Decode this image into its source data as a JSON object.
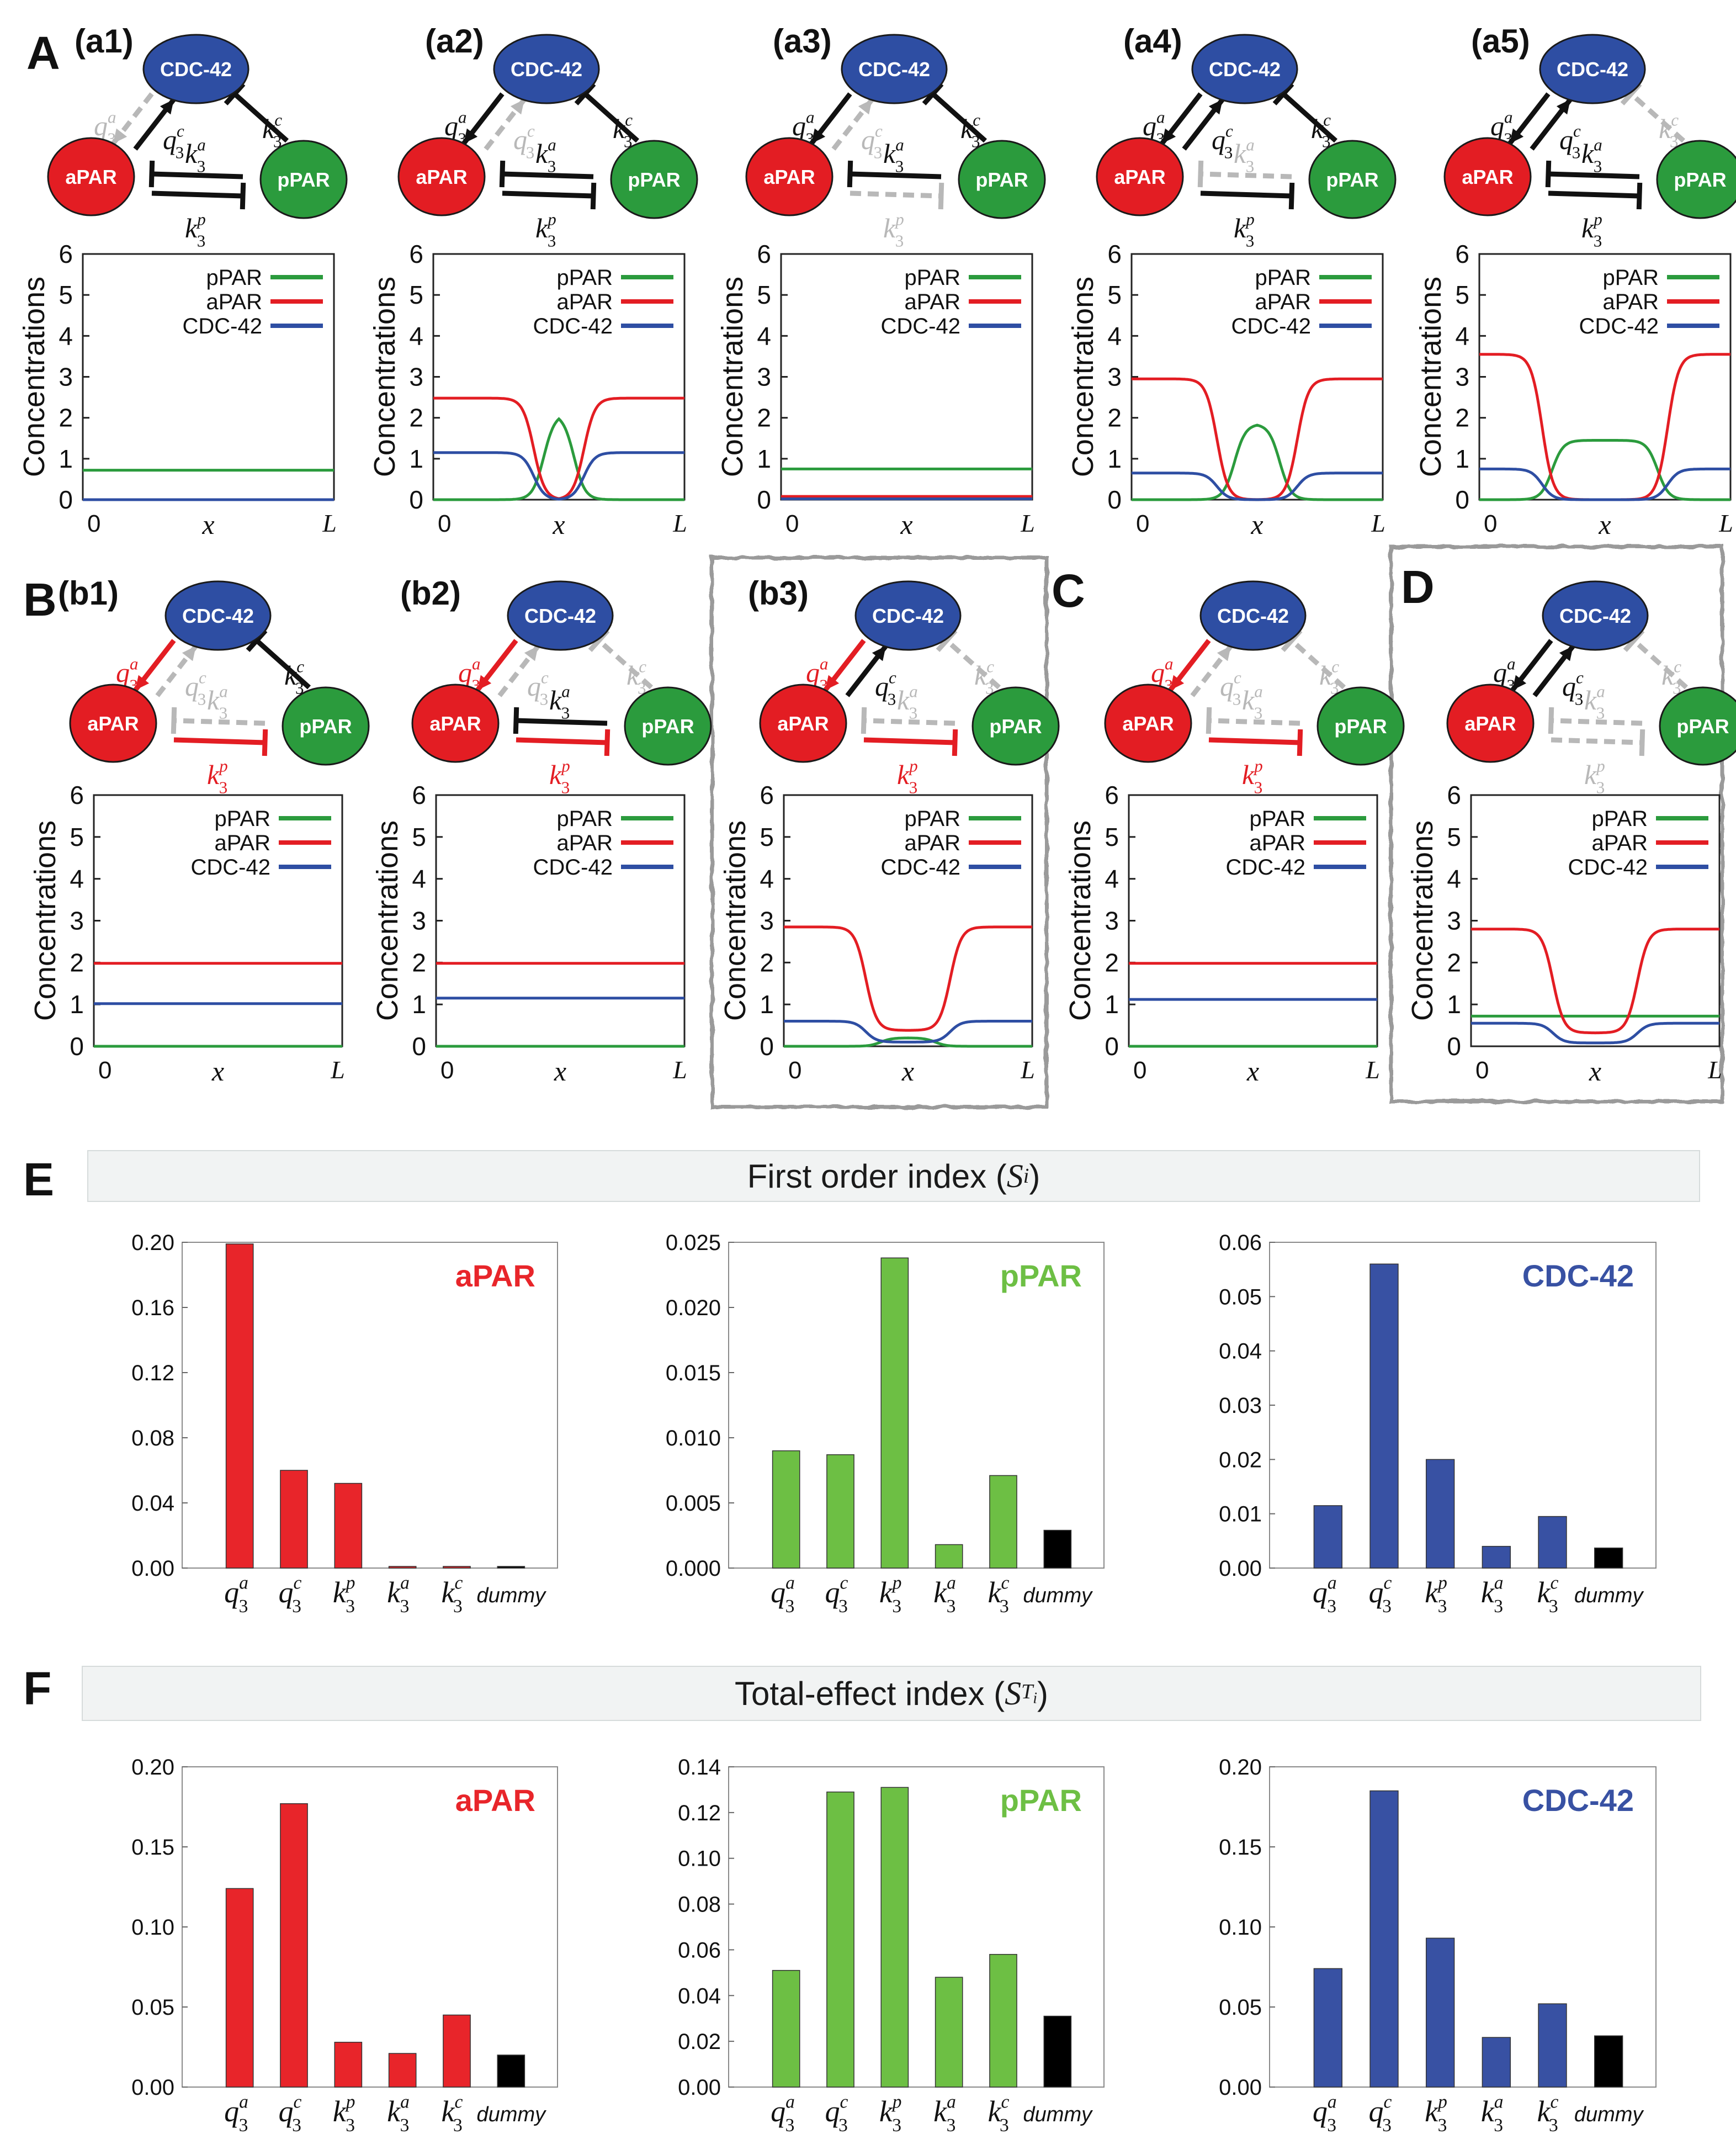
{
  "figure": {
    "panel_letters": [
      "A",
      "B",
      "C",
      "D",
      "E",
      "F"
    ],
    "species": {
      "cdc": "CDC-42",
      "apar": "aPAR",
      "ppar": "pPAR"
    },
    "edge_labels": {
      "q3a": "q",
      "q3c": "q",
      "k3a": "k",
      "k3c": "k",
      "k3p": "k",
      "sub": "3",
      "sup_a": "a",
      "sup_c": "c",
      "sup_p": "p"
    },
    "axis_labels": {
      "x": "x",
      "y": "Concentrations",
      "start": "0",
      "end": "L"
    },
    "colors": {
      "apar": "#e31d23",
      "ppar": "#2b9b3d",
      "cdc": "#2e4ea3",
      "active": "#111111",
      "inactive": "#b8b8b8",
      "green_bar": "#6dbf44",
      "red_bar": "#e8252a",
      "blue_bar": "#3851a3",
      "dummy_bar": "#000000"
    },
    "section_headers": {
      "first_order_prefix": "First order index (",
      "first_order_symbol": "S",
      "first_order_sub": "i",
      "total_prefix": "Total-effect index (",
      "total_symbol": "S",
      "total_sub": "T",
      "total_subsub": "i",
      "closing": ")"
    }
  },
  "chart_data": [
    {
      "id": "a1",
      "type": "line",
      "label": "(a1)",
      "xlabel": "x",
      "ylabel": "Concentrations",
      "ylim": [
        0,
        6
      ],
      "yticks": [
        0,
        1,
        2,
        3,
        4,
        5,
        6
      ],
      "legend": [
        "pPAR",
        "aPAR",
        "CDC-42"
      ],
      "network": {
        "q3a": "inactive",
        "q3c": "active",
        "k3a": "active",
        "k3p": "active",
        "k3c": "active"
      },
      "series": [
        {
          "name": "pPAR",
          "profile": "flat",
          "value": 0.72
        },
        {
          "name": "aPAR",
          "profile": "flat",
          "value": 0.0
        },
        {
          "name": "CDC-42",
          "profile": "flat",
          "value": 0.0
        }
      ]
    },
    {
      "id": "a2",
      "type": "line",
      "label": "(a2)",
      "xlabel": "x",
      "ylabel": "Concentrations",
      "ylim": [
        0,
        6
      ],
      "yticks": [
        0,
        1,
        2,
        3,
        4,
        5,
        6
      ],
      "legend": [
        "pPAR",
        "aPAR",
        "CDC-42"
      ],
      "network": {
        "q3a": "active",
        "q3c": "inactive",
        "k3a": "active",
        "k3p": "active",
        "k3c": "active"
      },
      "series": [
        {
          "name": "pPAR",
          "profile": "bump",
          "base": 0.0,
          "peak": 2.1,
          "center": 0.5,
          "width": 0.12
        },
        {
          "name": "aPAR",
          "profile": "dip",
          "base": 2.48,
          "low": 0.0,
          "center": 0.5,
          "width": 0.2
        },
        {
          "name": "CDC-42",
          "profile": "dip",
          "base": 1.15,
          "low": 0.0,
          "center": 0.5,
          "width": 0.2
        }
      ]
    },
    {
      "id": "a3",
      "type": "line",
      "label": "(a3)",
      "xlabel": "x",
      "ylabel": "Concentrations",
      "ylim": [
        0,
        6
      ],
      "yticks": [
        0,
        1,
        2,
        3,
        4,
        5,
        6
      ],
      "legend": [
        "pPAR",
        "aPAR",
        "CDC-42"
      ],
      "network": {
        "q3a": "active",
        "q3c": "inactive",
        "k3a": "active",
        "k3p": "inactive",
        "k3c": "active"
      },
      "series": [
        {
          "name": "pPAR",
          "profile": "flat",
          "value": 0.75
        },
        {
          "name": "aPAR",
          "profile": "flat",
          "value": 0.08
        },
        {
          "name": "CDC-42",
          "profile": "flat",
          "value": 0.02
        }
      ]
    },
    {
      "id": "a4",
      "type": "line",
      "label": "(a4)",
      "xlabel": "x",
      "ylabel": "Concentrations",
      "ylim": [
        0,
        6
      ],
      "yticks": [
        0,
        1,
        2,
        3,
        4,
        5,
        6
      ],
      "legend": [
        "pPAR",
        "aPAR",
        "CDC-42"
      ],
      "network": {
        "q3a": "active",
        "q3c": "active",
        "k3a": "inactive",
        "k3p": "active",
        "k3c": "active"
      },
      "series": [
        {
          "name": "pPAR",
          "profile": "bump",
          "base": 0.0,
          "peak": 1.85,
          "center": 0.5,
          "width": 0.18
        },
        {
          "name": "aPAR",
          "profile": "dip",
          "base": 2.95,
          "low": 0.0,
          "center": 0.5,
          "width": 0.32
        },
        {
          "name": "CDC-42",
          "profile": "dip",
          "base": 0.65,
          "low": 0.0,
          "center": 0.5,
          "width": 0.32
        }
      ]
    },
    {
      "id": "a5",
      "type": "line",
      "label": "(a5)",
      "xlabel": "x",
      "ylabel": "Concentrations",
      "ylim": [
        0,
        6
      ],
      "yticks": [
        0,
        1,
        2,
        3,
        4,
        5,
        6
      ],
      "legend": [
        "pPAR",
        "aPAR",
        "CDC-42"
      ],
      "network": {
        "q3a": "active",
        "q3c": "active",
        "k3a": "active",
        "k3p": "active",
        "k3c": "inactive"
      },
      "series": [
        {
          "name": "pPAR",
          "profile": "bump",
          "base": 0.0,
          "peak": 1.45,
          "center": 0.5,
          "width": 0.42
        },
        {
          "name": "aPAR",
          "profile": "dip",
          "base": 3.55,
          "low": 0.0,
          "center": 0.5,
          "width": 0.5
        },
        {
          "name": "CDC-42",
          "profile": "dip",
          "base": 0.75,
          "low": 0.0,
          "center": 0.5,
          "width": 0.5
        }
      ]
    },
    {
      "id": "b1",
      "type": "line",
      "label": "(b1)",
      "xlabel": "x",
      "ylabel": "Concentrations",
      "ylim": [
        0,
        6
      ],
      "yticks": [
        0,
        1,
        2,
        3,
        4,
        5,
        6
      ],
      "legend": [
        "pPAR",
        "aPAR",
        "CDC-42"
      ],
      "network": {
        "q3a": "red",
        "q3c": "inactive",
        "k3a": "inactive",
        "k3p": "red",
        "k3c": "active"
      },
      "series": [
        {
          "name": "pPAR",
          "profile": "flat",
          "value": 0.0
        },
        {
          "name": "aPAR",
          "profile": "flat",
          "value": 1.98
        },
        {
          "name": "CDC-42",
          "profile": "flat",
          "value": 1.02
        }
      ]
    },
    {
      "id": "b2",
      "type": "line",
      "label": "(b2)",
      "xlabel": "x",
      "ylabel": "Concentrations",
      "ylim": [
        0,
        6
      ],
      "yticks": [
        0,
        1,
        2,
        3,
        4,
        5,
        6
      ],
      "legend": [
        "pPAR",
        "aPAR",
        "CDC-42"
      ],
      "network": {
        "q3a": "red",
        "q3c": "inactive",
        "k3a": "active",
        "k3p": "red",
        "k3c": "inactive"
      },
      "series": [
        {
          "name": "pPAR",
          "profile": "flat",
          "value": 0.0
        },
        {
          "name": "aPAR",
          "profile": "flat",
          "value": 1.98
        },
        {
          "name": "CDC-42",
          "profile": "flat",
          "value": 1.15
        }
      ]
    },
    {
      "id": "b3",
      "type": "line",
      "label": "(b3)",
      "xlabel": "x",
      "ylabel": "Concentrations",
      "ylim": [
        0,
        6
      ],
      "yticks": [
        0,
        1,
        2,
        3,
        4,
        5,
        6
      ],
      "legend": [
        "pPAR",
        "aPAR",
        "CDC-42"
      ],
      "network": {
        "q3a": "red",
        "q3c": "active",
        "k3a": "inactive",
        "k3p": "red",
        "k3c": "inactive"
      },
      "series": [
        {
          "name": "pPAR",
          "profile": "bump",
          "base": 0.0,
          "peak": 0.2,
          "center": 0.5,
          "width": 0.22
        },
        {
          "name": "aPAR",
          "profile": "dip",
          "base": 2.85,
          "low": 0.38,
          "center": 0.5,
          "width": 0.34
        },
        {
          "name": "CDC-42",
          "profile": "dip",
          "base": 0.6,
          "low": 0.1,
          "center": 0.5,
          "width": 0.34
        }
      ]
    },
    {
      "id": "c",
      "type": "line",
      "label": "",
      "xlabel": "x",
      "ylabel": "Concentrations",
      "ylim": [
        0,
        6
      ],
      "yticks": [
        0,
        1,
        2,
        3,
        4,
        5,
        6
      ],
      "legend": [
        "pPAR",
        "aPAR",
        "CDC-42"
      ],
      "network": {
        "q3a": "red",
        "q3c": "inactive",
        "k3a": "inactive",
        "k3p": "red",
        "k3c": "inactive"
      },
      "series": [
        {
          "name": "pPAR",
          "profile": "flat",
          "value": 0.0
        },
        {
          "name": "aPAR",
          "profile": "flat",
          "value": 1.98
        },
        {
          "name": "CDC-42",
          "profile": "flat",
          "value": 1.12
        }
      ]
    },
    {
      "id": "d",
      "type": "line",
      "label": "",
      "xlabel": "x",
      "ylabel": "Concentrations",
      "ylim": [
        0,
        6
      ],
      "yticks": [
        0,
        1,
        2,
        3,
        4,
        5,
        6
      ],
      "legend": [
        "pPAR",
        "aPAR",
        "CDC-42"
      ],
      "network": {
        "q3a": "active",
        "q3c": "active",
        "k3a": "inactive",
        "k3p": "inactive",
        "k3c": "inactive"
      },
      "series": [
        {
          "name": "pPAR",
          "profile": "flat",
          "value": 0.72
        },
        {
          "name": "aPAR",
          "profile": "dip",
          "base": 2.8,
          "low": 0.32,
          "center": 0.5,
          "width": 0.34
        },
        {
          "name": "CDC-42",
          "profile": "dip",
          "base": 0.55,
          "low": 0.08,
          "center": 0.5,
          "width": 0.34
        }
      ]
    },
    {
      "id": "e_apar",
      "type": "bar",
      "title": "aPAR",
      "categories": [
        "q3a",
        "q3c",
        "k3p",
        "k3a",
        "k3c",
        "dummy"
      ],
      "values": [
        0.199,
        0.06,
        0.052,
        0.001,
        0.001,
        0.001
      ],
      "ylim": [
        0,
        0.2
      ],
      "yticks": [
        "0.00",
        "0.04",
        "0.08",
        "0.12",
        "0.16",
        "0.20"
      ]
    },
    {
      "id": "e_ppar",
      "type": "bar",
      "title": "pPAR",
      "categories": [
        "q3a",
        "q3c",
        "k3p",
        "k3a",
        "k3c",
        "dummy"
      ],
      "values": [
        0.009,
        0.0087,
        0.0238,
        0.0018,
        0.0071,
        0.0029
      ],
      "ylim": [
        0,
        0.025
      ],
      "yticks": [
        "0.000",
        "0.005",
        "0.010",
        "0.015",
        "0.020",
        "0.025"
      ]
    },
    {
      "id": "e_cdc",
      "type": "bar",
      "title": "CDC-42",
      "categories": [
        "q3a",
        "q3c",
        "k3p",
        "k3a",
        "k3c",
        "dummy"
      ],
      "values": [
        0.0115,
        0.056,
        0.02,
        0.004,
        0.0095,
        0.0037
      ],
      "ylim": [
        0,
        0.06
      ],
      "yticks": [
        "0.00",
        "0.01",
        "0.02",
        "0.03",
        "0.04",
        "0.05",
        "0.06"
      ]
    },
    {
      "id": "f_apar",
      "type": "bar",
      "title": "aPAR",
      "categories": [
        "q3a",
        "q3c",
        "k3p",
        "k3a",
        "k3c",
        "dummy"
      ],
      "values": [
        0.124,
        0.177,
        0.028,
        0.021,
        0.045,
        0.02
      ],
      "ylim": [
        0,
        0.2
      ],
      "yticks": [
        "0.00",
        "0.05",
        "0.10",
        "0.15",
        "0.20"
      ]
    },
    {
      "id": "f_ppar",
      "type": "bar",
      "title": "pPAR",
      "categories": [
        "q3a",
        "q3c",
        "k3p",
        "k3a",
        "k3c",
        "dummy"
      ],
      "values": [
        0.051,
        0.129,
        0.131,
        0.048,
        0.058,
        0.031
      ],
      "ylim": [
        0,
        0.14
      ],
      "yticks": [
        "0.00",
        "0.02",
        "0.04",
        "0.06",
        "0.08",
        "0.10",
        "0.12",
        "0.14"
      ]
    },
    {
      "id": "f_cdc",
      "type": "bar",
      "title": "CDC-42",
      "categories": [
        "q3a",
        "q3c",
        "k3p",
        "k3a",
        "k3c",
        "dummy"
      ],
      "values": [
        0.074,
        0.185,
        0.093,
        0.031,
        0.052,
        0.032
      ],
      "ylim": [
        0,
        0.2
      ],
      "yticks": [
        "0.00",
        "0.05",
        "0.10",
        "0.15",
        "0.20"
      ]
    }
  ]
}
